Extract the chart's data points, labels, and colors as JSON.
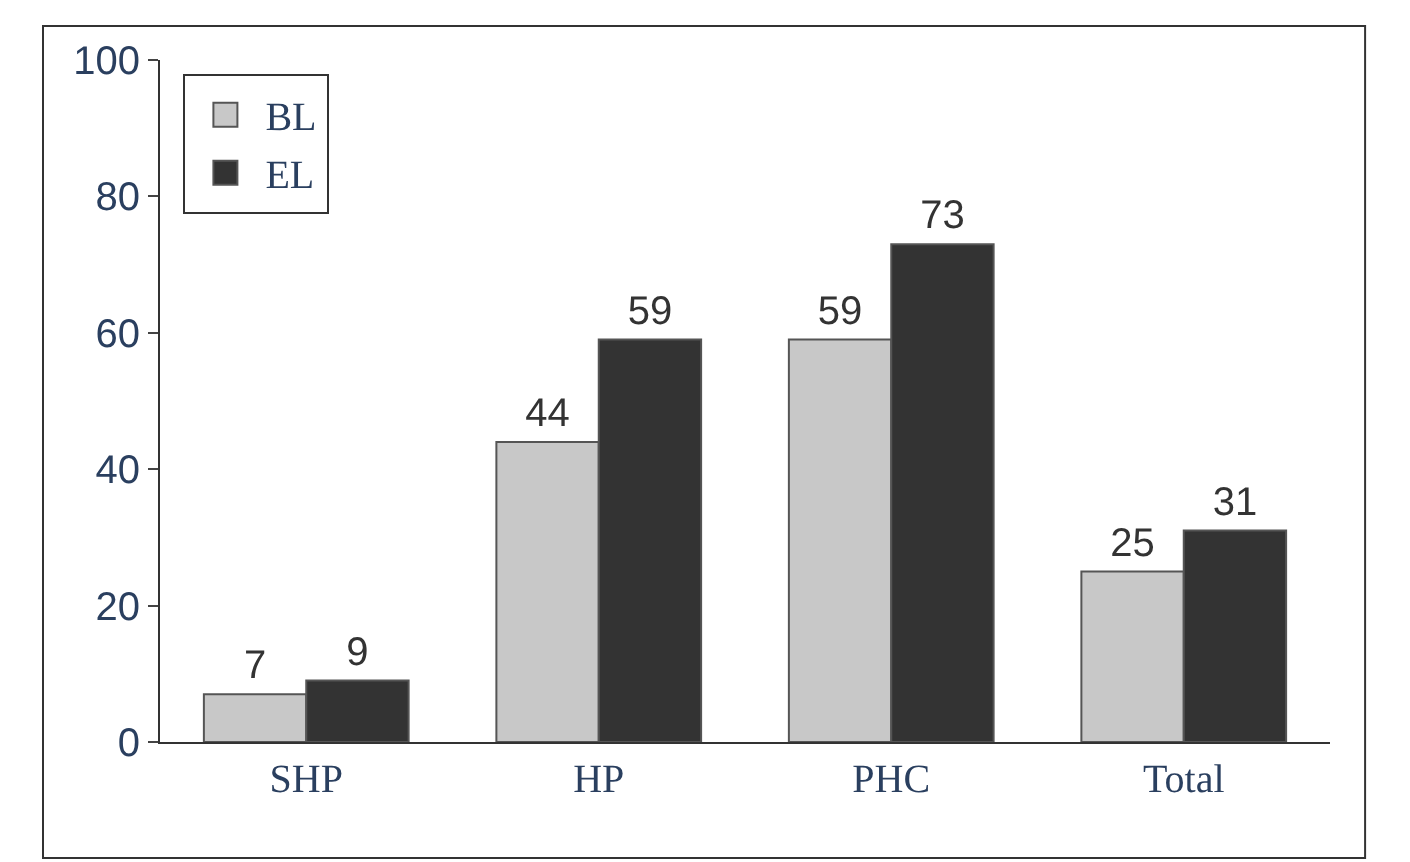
{
  "chart_data": {
    "type": "bar",
    "categories": [
      "SHP",
      "HP",
      "PHC",
      "Total"
    ],
    "series": [
      {
        "name": "BL",
        "color": "#c8c8c8",
        "values": [
          7,
          44,
          59,
          25
        ]
      },
      {
        "name": "EL",
        "color": "#333333",
        "values": [
          9,
          59,
          73,
          31
        ]
      }
    ],
    "ylim": [
      0,
      100
    ],
    "yticks": [
      0,
      20,
      40,
      60,
      80,
      100
    ],
    "legend": "top left",
    "data_labels": true
  }
}
